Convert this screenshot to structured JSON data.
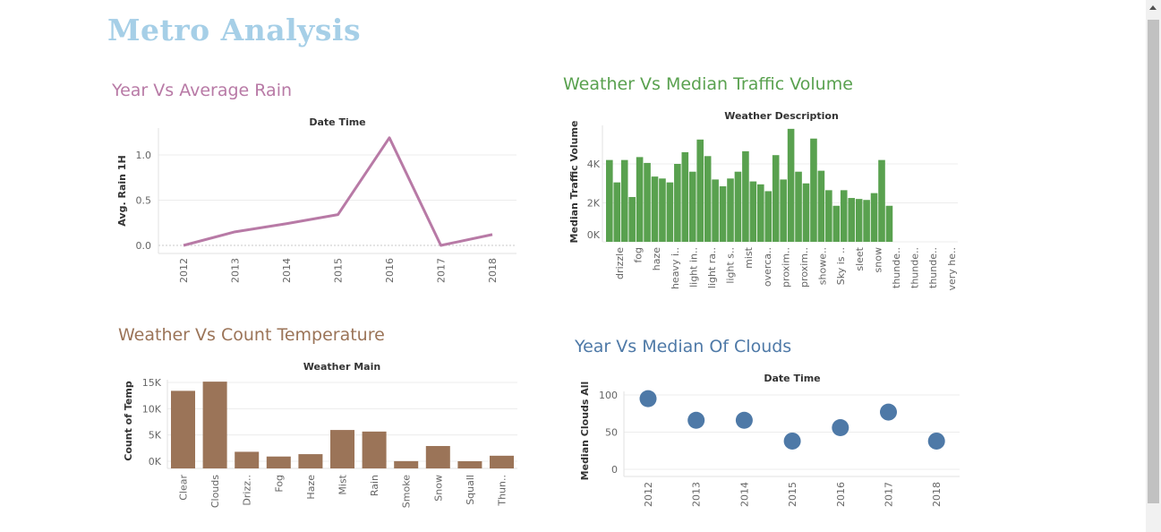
{
  "page": {
    "title": "Metro Analysis"
  },
  "panels": {
    "p1": {
      "title": "Year Vs Average Rain"
    },
    "p2": {
      "title": "Weather Vs Median Traffic Volume"
    },
    "p3": {
      "title": "Weather Vs  Count Temperature"
    },
    "p4": {
      "title": "Year Vs Median Of Clouds"
    }
  },
  "chart_data": [
    {
      "id": "rain",
      "type": "line",
      "title": "Date Time",
      "xlabel": "",
      "ylabel": "Avg. Rain 1H",
      "x": [
        "2012",
        "2013",
        "2014",
        "2015",
        "2016",
        "2017",
        "2018"
      ],
      "values": [
        0.0,
        0.15,
        0.24,
        0.34,
        1.19,
        0.0,
        0.12
      ],
      "ylim": [
        0,
        1.2
      ],
      "yticks": [
        "0.0",
        "0.5",
        "1.0"
      ],
      "yticks_values": [
        0,
        0.5,
        1.0
      ],
      "grid": true,
      "color": "#b87aa6"
    },
    {
      "id": "traffic",
      "type": "bar",
      "title": "Weather Description",
      "ylabel": "Median Traffic Volume",
      "values": [
        4200,
        3050,
        4200,
        2300,
        4350,
        4050,
        3350,
        3250,
        3050,
        4000,
        4600,
        3600,
        5250,
        4400,
        3200,
        2850,
        3250,
        3600,
        4650,
        3100,
        2950,
        2600,
        4450,
        3200,
        5800,
        3600,
        3000,
        5300,
        3650,
        2650,
        1850,
        2650,
        2250,
        2200,
        2150,
        2500,
        4200,
        1850
      ],
      "category_labels": [
        "drizzle",
        "fog",
        "haze",
        "heavy i..",
        "light in..",
        "light ra..",
        "light s..",
        "mist",
        "overca..",
        "proxim..",
        "proxim..",
        "showe..",
        "Sky is ..",
        "sleet",
        "snow",
        "thunde..",
        "thunde..",
        "thunde..",
        "very he.."
      ],
      "ylim": [
        0,
        6000
      ],
      "yticks": [
        "0K",
        "2K",
        "4K"
      ],
      "yticks_values": [
        0,
        2000,
        4000
      ],
      "grid": true,
      "color": "#59a14f"
    },
    {
      "id": "temp",
      "type": "bar",
      "title": "Weather Main",
      "ylabel": "Count of Temp",
      "categories": [
        "Clear",
        "Clouds",
        "Drizz..",
        "Fog",
        "Haze",
        "Mist",
        "Rain",
        "Smoke",
        "Snow",
        "Squall",
        "Thun.."
      ],
      "values": [
        13400,
        15150,
        1800,
        900,
        1350,
        5950,
        5650,
        20,
        2900,
        5,
        1050
      ],
      "ylim": [
        0,
        15500
      ],
      "yticks": [
        "0K",
        "5K",
        "10K",
        "15K"
      ],
      "yticks_values": [
        0,
        5000,
        10000,
        15000
      ],
      "grid": true,
      "color": "#9b7458"
    },
    {
      "id": "clouds",
      "type": "scatter",
      "title": "Date Time",
      "ylabel": "Median Clouds All",
      "x": [
        "2012",
        "2013",
        "2014",
        "2015",
        "2016",
        "2017",
        "2018"
      ],
      "values": [
        95,
        66,
        66,
        38,
        56,
        77,
        38
      ],
      "ylim": [
        0,
        105
      ],
      "yticks": [
        "0",
        "50",
        "100"
      ],
      "yticks_values": [
        0,
        50,
        100
      ],
      "grid": true,
      "color": "#4e79a7"
    }
  ]
}
